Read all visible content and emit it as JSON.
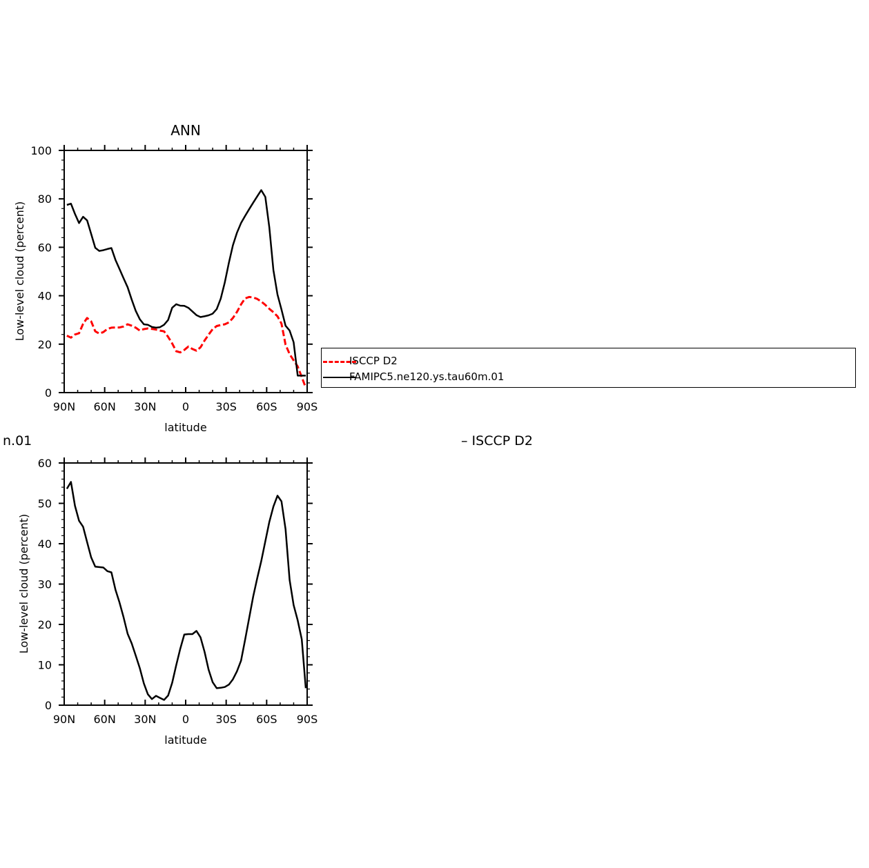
{
  "page": {
    "clipped_left_text": "n.01",
    "clipped_right_text": "– ISCCP D2"
  },
  "legend": {
    "items": [
      {
        "label": "ISCCP D2",
        "color": "#ff0000",
        "style": "dashed"
      },
      {
        "label": "FAMIPC5.ne120.ys.tau60m.01",
        "color": "#000000",
        "style": "solid"
      }
    ]
  },
  "chart_data": [
    {
      "type": "line",
      "title": "ANN",
      "xlabel": "latitude",
      "ylabel": "Low-level cloud (percent)",
      "xlim": [
        -90,
        90
      ],
      "ylim": [
        0,
        100
      ],
      "xticks": [
        -90,
        -60,
        -30,
        0,
        30,
        60,
        90
      ],
      "xtick_labels": [
        "90N",
        "60N",
        "30N",
        "0",
        "30S",
        "60S",
        "90S"
      ],
      "yticks": [
        0,
        20,
        40,
        60,
        80,
        100
      ],
      "ytick_labels": [
        "0",
        "20",
        "40",
        "60",
        "80",
        "100"
      ],
      "grid": false,
      "legend_position": "right",
      "series": [
        {
          "name": "ISCCP D2",
          "color": "#ff0000",
          "style": "dashed",
          "x": [
            -88,
            -85,
            -82,
            -79,
            -76,
            -73,
            -70,
            -67,
            -64,
            -61,
            -58,
            -55,
            -52,
            -49,
            -46,
            -43,
            -40,
            -37,
            -34,
            -31,
            -28,
            -25,
            -22,
            -19,
            -16,
            -13,
            -10,
            -7,
            -4,
            -1,
            2,
            5,
            8,
            11,
            14,
            17,
            20,
            23,
            26,
            29,
            32,
            35,
            38,
            41,
            44,
            47,
            50,
            53,
            56,
            59,
            62,
            65,
            68,
            71,
            74,
            77,
            80,
            83,
            86,
            89
          ],
          "y": [
            23.5,
            22.7,
            24.0,
            24.5,
            28.4,
            30.8,
            29.4,
            25.3,
            24.4,
            25.0,
            26.3,
            26.8,
            26.9,
            26.9,
            27.3,
            28.2,
            27.6,
            26.8,
            25.6,
            26.2,
            26.5,
            26.3,
            26.0,
            25.6,
            25.3,
            23.0,
            20.3,
            17.1,
            16.6,
            17.6,
            19.0,
            18.0,
            17.3,
            18.7,
            21.5,
            23.9,
            26.2,
            27.5,
            27.9,
            28.2,
            29.0,
            30.8,
            33.3,
            36.4,
            38.9,
            39.5,
            39.3,
            38.7,
            37.6,
            36.2,
            34.6,
            33.2,
            31.5,
            28.5,
            19.8,
            15.9,
            13.3,
            10.8,
            6.4,
            2.0
          ]
        },
        {
          "name": "FAMIPC5.ne120.ys.tau60m.01",
          "color": "#000000",
          "style": "solid",
          "x": [
            -88,
            -85,
            -82,
            -79,
            -76,
            -73,
            -70,
            -67,
            -64,
            -61,
            -58,
            -55,
            -52,
            -49,
            -46,
            -43,
            -40,
            -37,
            -34,
            -31,
            -28,
            -25,
            -22,
            -19,
            -16,
            -13,
            -10,
            -7,
            -4,
            -1,
            2,
            5,
            8,
            11,
            14,
            17,
            20,
            23,
            26,
            29,
            32,
            35,
            38,
            41,
            44,
            47,
            50,
            53,
            56,
            59,
            62,
            65,
            68,
            71,
            74,
            77,
            80,
            83,
            86,
            89
          ],
          "y": [
            77.5,
            78.0,
            73.8,
            70.0,
            72.6,
            71.1,
            65.5,
            59.8,
            58.5,
            58.8,
            59.3,
            59.7,
            54.8,
            51.0,
            47.2,
            43.5,
            38.4,
            33.8,
            30.3,
            28.2,
            28.0,
            27.1,
            26.8,
            27.0,
            28.0,
            30.0,
            35.0,
            36.5,
            35.9,
            35.8,
            35.0,
            33.5,
            32.0,
            31.2,
            31.5,
            31.9,
            32.6,
            34.5,
            38.8,
            45.5,
            53.6,
            60.8,
            66.0,
            70.0,
            72.9,
            75.7,
            78.4,
            81.0,
            83.6,
            80.8,
            68.2,
            50.6,
            40.5,
            34.3,
            27.6,
            25.6,
            20.8,
            7.0,
            7.0,
            7.0
          ]
        }
      ]
    },
    {
      "type": "line",
      "title": "",
      "xlabel": "latitude",
      "ylabel": "Low-level cloud (percent)",
      "xlim": [
        -90,
        90
      ],
      "ylim": [
        0,
        60
      ],
      "xticks": [
        -90,
        -60,
        -30,
        0,
        30,
        60,
        90
      ],
      "xtick_labels": [
        "90N",
        "60N",
        "30N",
        "0",
        "30S",
        "60S",
        "90S"
      ],
      "yticks": [
        0,
        10,
        20,
        30,
        40,
        50,
        60
      ],
      "ytick_labels": [
        "0",
        "10",
        "20",
        "30",
        "40",
        "50",
        "60"
      ],
      "grid": false,
      "series": [
        {
          "color": "#000000",
          "style": "solid",
          "x": [
            -88,
            -85,
            -82,
            -79,
            -76,
            -73,
            -70,
            -67,
            -64,
            -61,
            -58,
            -55,
            -52,
            -49,
            -46,
            -43,
            -40,
            -37,
            -34,
            -31,
            -28,
            -25,
            -22,
            -19,
            -16,
            -13,
            -10,
            -7,
            -4,
            -1,
            2,
            5,
            8,
            11,
            14,
            17,
            20,
            23,
            26,
            29,
            32,
            35,
            38,
            41,
            44,
            47,
            50,
            53,
            56,
            59,
            62,
            65,
            68,
            71,
            74,
            77,
            80,
            83,
            86,
            89
          ],
          "y": [
            53.6,
            55.3,
            49.4,
            45.7,
            44.2,
            40.4,
            36.6,
            34.3,
            34.2,
            34.1,
            33.2,
            32.9,
            28.6,
            25.4,
            21.8,
            17.7,
            15.3,
            12.3,
            9.2,
            5.4,
            2.7,
            1.5,
            2.3,
            1.8,
            1.3,
            2.4,
            5.5,
            9.9,
            14.0,
            17.5,
            17.6,
            17.6,
            18.4,
            16.8,
            13.2,
            8.8,
            5.7,
            4.2,
            4.3,
            4.5,
            5.1,
            6.4,
            8.4,
            11.0,
            16.1,
            21.5,
            26.9,
            31.4,
            35.7,
            40.6,
            45.4,
            49.2,
            51.9,
            50.5,
            43.6,
            31.0,
            24.8,
            21.0,
            16.3,
            4.2
          ]
        }
      ]
    }
  ]
}
